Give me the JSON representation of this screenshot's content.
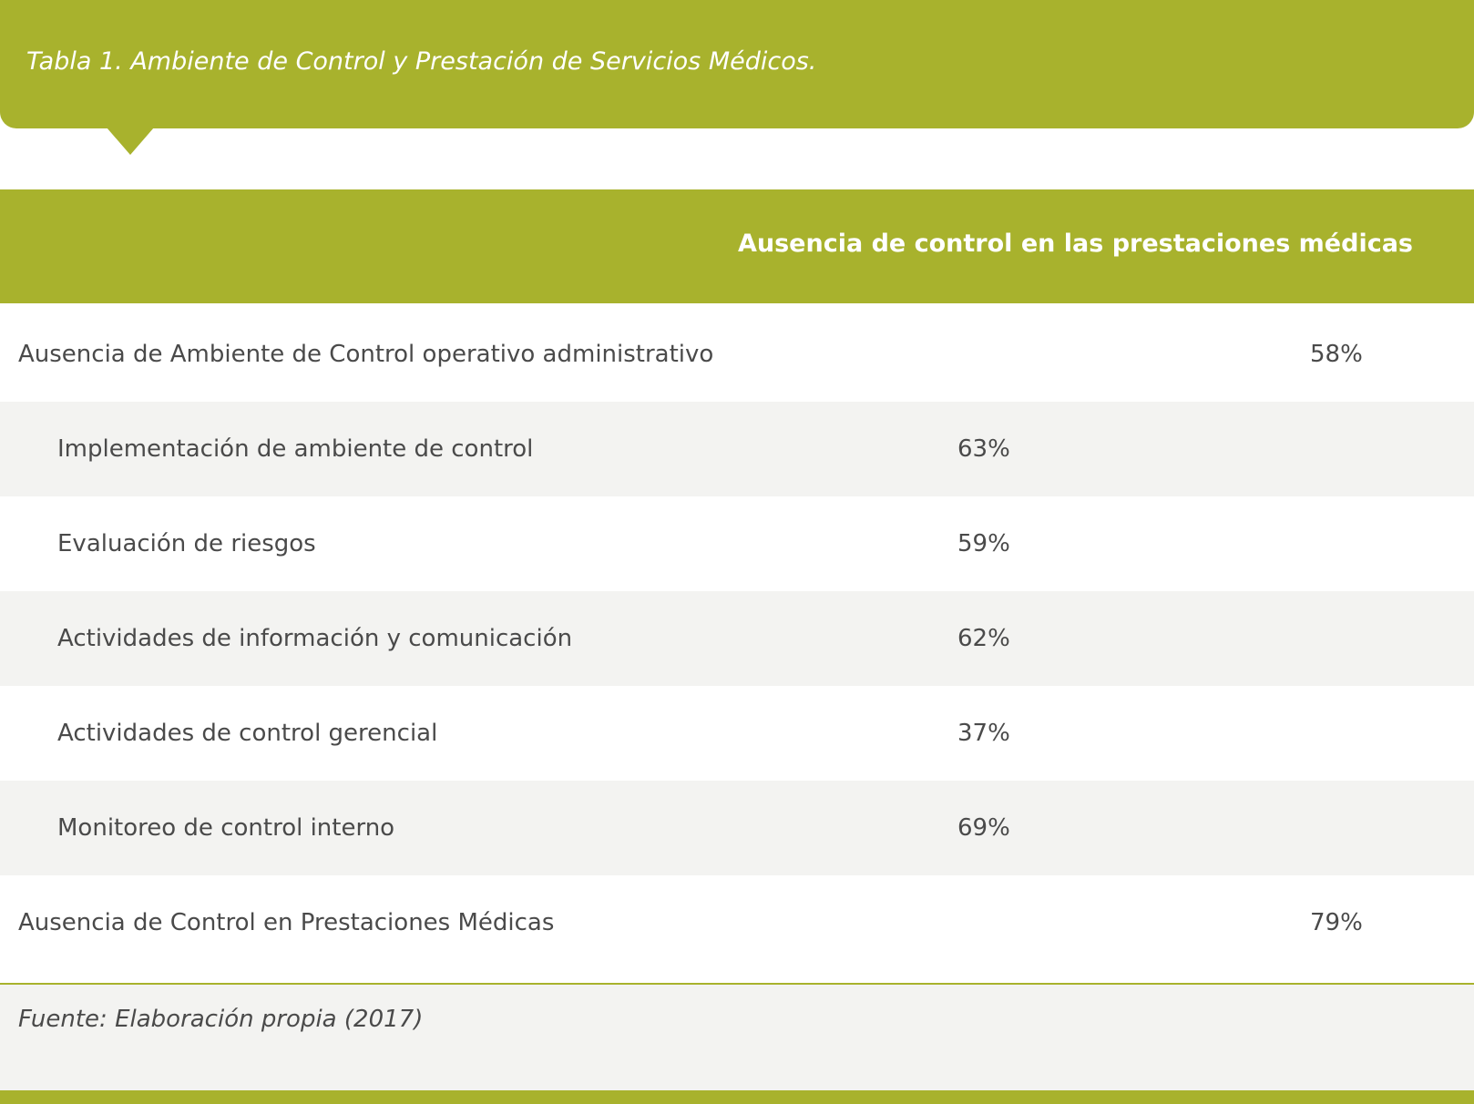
{
  "header": {
    "title": "Tabla 1. Ambiente de Control y Prestación de Servicios Médicos."
  },
  "table": {
    "column_header": "Ausencia de control en las prestaciones médicas",
    "rows": [
      {
        "label": "Ausencia de Ambiente de Control operativo administrativo",
        "value": "58%",
        "level": 0
      },
      {
        "label": "Implementación de ambiente de control",
        "value": "63%",
        "level": 1
      },
      {
        "label": "Evaluación de riesgos",
        "value": "59%",
        "level": 1
      },
      {
        "label": "Actividades de información y comunicación",
        "value": "62%",
        "level": 1
      },
      {
        "label": "Actividades de control gerencial",
        "value": "37%",
        "level": 1
      },
      {
        "label": "Monitoreo de control interno",
        "value": "69%",
        "level": 1
      },
      {
        "label": "Ausencia de Control en Prestaciones Médicas",
        "value": "79%",
        "level": 0
      }
    ]
  },
  "footer": {
    "source": "Fuente: Elaboración propia (2017)"
  }
}
